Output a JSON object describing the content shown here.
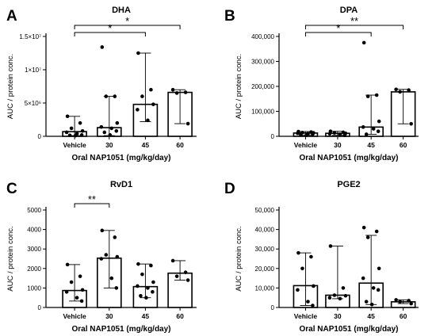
{
  "chart_data": [
    {
      "panel_label": "A",
      "type": "bar",
      "title": "DHA",
      "xlabel": "Oral NAP1051 (mg/kg/day)",
      "ylabel": "AUC / protein conc.",
      "categories": [
        "Vehicle",
        "30",
        "45",
        "60"
      ],
      "ylim": [
        0,
        15000000
      ],
      "yticks": [
        0,
        5000000,
        10000000,
        15000000
      ],
      "ytick_labels": [
        "0",
        "5×10⁶",
        "1×10⁷",
        "1.5×10⁷"
      ],
      "values": [
        700000,
        1300000,
        4800000,
        6600000
      ],
      "range_low": [
        100000,
        100000,
        2200000,
        1900000
      ],
      "range_high": [
        3000000,
        6000000,
        12500000,
        7000000
      ],
      "points": [
        [
          3000000,
          2000000,
          1200000,
          800000,
          600000,
          400000,
          200000,
          150000,
          100000
        ],
        [
          13400000,
          6000000,
          6000000,
          2000000,
          1400000,
          1200000,
          800000,
          600000,
          200000
        ],
        [
          12500000,
          7000000,
          6000000,
          4800000,
          4000000,
          2400000
        ],
        [
          7000000,
          6600000,
          6500000,
          1900000
        ]
      ],
      "significance": [
        {
          "from": "Vehicle",
          "to": "45",
          "label": "*"
        },
        {
          "from": "Vehicle",
          "to": "60",
          "label": "*"
        }
      ]
    },
    {
      "panel_label": "B",
      "type": "bar",
      "title": "DPA",
      "xlabel": "Oral NAP1051 (mg/kg/day)",
      "ylabel": "AUC / protein conc.",
      "categories": [
        "Vehicle",
        "30",
        "45",
        "60"
      ],
      "ylim": [
        0,
        400000
      ],
      "yticks": [
        0,
        100000,
        200000,
        300000,
        400000
      ],
      "ytick_labels": [
        "0",
        "100,000",
        "200,000",
        "300,000",
        "400,000"
      ],
      "values": [
        13000,
        12000,
        37000,
        178000
      ],
      "range_low": [
        4000,
        4000,
        8000,
        50000
      ],
      "range_high": [
        19000,
        20000,
        165000,
        188000
      ],
      "points": [
        [
          19000,
          17000,
          15000,
          14000,
          12000,
          10000,
          8000,
          6000,
          4000
        ],
        [
          20000,
          16000,
          14000,
          12000,
          10000,
          8000,
          4000
        ],
        [
          375000,
          165000,
          160000,
          60000,
          37000,
          30000,
          20000,
          8000
        ],
        [
          188000,
          185000,
          178000,
          50000
        ]
      ],
      "significance": [
        {
          "from": "Vehicle",
          "to": "45",
          "label": "*"
        },
        {
          "from": "Vehicle",
          "to": "60",
          "label": "**"
        }
      ]
    },
    {
      "panel_label": "C",
      "type": "bar",
      "title": "RvD1",
      "xlabel": "Oral NAP1051 (mg/kg/day)",
      "ylabel": "AUC / protein conc.",
      "categories": [
        "Vehicle",
        "30",
        "45",
        "60"
      ],
      "ylim": [
        0,
        5000
      ],
      "yticks": [
        0,
        1000,
        2000,
        3000,
        4000,
        5000
      ],
      "ytick_labels": [
        "0",
        "1000",
        "2000",
        "3000",
        "4000",
        "5000"
      ],
      "values": [
        870,
        2530,
        1070,
        1760
      ],
      "range_low": [
        330,
        1000,
        500,
        1400
      ],
      "range_high": [
        2200,
        3950,
        2230,
        2400
      ],
      "points": [
        [
          2200,
          1600,
          1300,
          900,
          800,
          500,
          330
        ],
        [
          3950,
          3600,
          2700,
          2600,
          2500,
          1500,
          1000
        ],
        [
          2230,
          2150,
          1700,
          1300,
          1100,
          1000,
          800,
          600,
          500
        ],
        [
          2400,
          1800,
          1600,
          1400
        ]
      ],
      "significance": [
        {
          "from": "Vehicle",
          "to": "30",
          "label": "**"
        }
      ]
    },
    {
      "panel_label": "D",
      "type": "bar",
      "title": "PGE2",
      "xlabel": "Oral NAP1051 (mg/kg/day)",
      "ylabel": "AUC / protein conc.",
      "categories": [
        "Vehicle",
        "30",
        "45",
        "60"
      ],
      "ylim": [
        0,
        50000
      ],
      "yticks": [
        0,
        10000,
        20000,
        30000,
        40000,
        50000
      ],
      "ytick_labels": [
        "0",
        "10,000",
        "20,000",
        "30,000",
        "40,000",
        "50,000"
      ],
      "values": [
        11200,
        6300,
        12500,
        2900
      ],
      "range_low": [
        1000,
        4500,
        1500,
        2000
      ],
      "range_high": [
        28000,
        31500,
        37000,
        3900
      ],
      "points": [
        [
          28000,
          26000,
          20000,
          11000,
          9000,
          3000,
          1000
        ],
        [
          31500,
          10000,
          6300,
          6000,
          5000,
          4500
        ],
        [
          41000,
          39000,
          36000,
          20000,
          15000,
          10000,
          9000,
          3000,
          1500
        ],
        [
          3900,
          3500,
          3000,
          2000
        ]
      ],
      "significance": []
    }
  ]
}
